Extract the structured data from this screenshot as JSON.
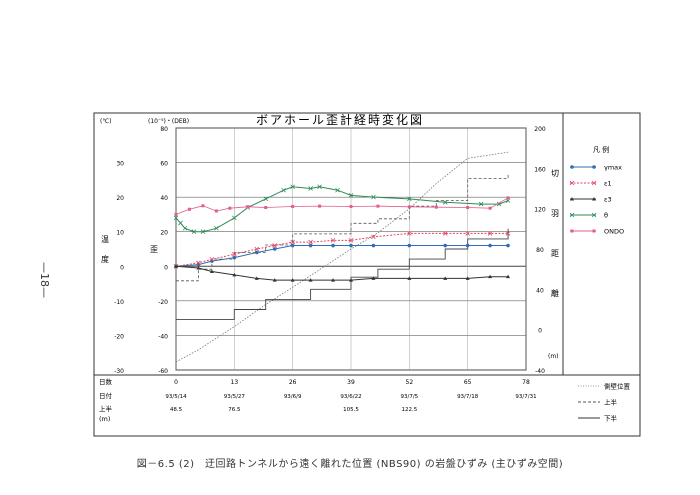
{
  "page_number": "—18—",
  "caption": "図－6.5 (2)　迂回路トンネルから遠く離れた位置 (NBS90) の岩盤ひずみ (主ひずみ空間)",
  "chart_data": {
    "type": "line",
    "title": "ボアホール歪計経時変化図",
    "left_axis": {
      "unit": "(℃)",
      "label_chars": [
        "温",
        "度"
      ],
      "ticks": [
        30,
        20,
        10,
        0,
        -10,
        -20,
        -30
      ]
    },
    "strain_axis": {
      "unit": "(10⁻⁵)・(DEB)",
      "label_char": "歪",
      "ticks": [
        80,
        60,
        40,
        20,
        0,
        -20,
        -40,
        -60
      ],
      "ylim": [
        -60,
        80
      ]
    },
    "right_axis": {
      "unit": "(m)",
      "label_chars": [
        "切",
        "羽",
        "距",
        "離"
      ],
      "ticks": [
        200,
        160,
        120,
        80,
        40,
        0,
        -40
      ]
    },
    "x_axis": {
      "row_labels": [
        "日数",
        "日付",
        "上半",
        "(m)"
      ],
      "day_ticks": [
        "0",
        "13",
        "26",
        "39",
        "52",
        "65",
        "78"
      ],
      "day_values": [
        0,
        13,
        26,
        39,
        52,
        65,
        78
      ],
      "date_ticks": [
        "93/5/14",
        "93/5/27",
        "93/6/9",
        "93/6/22",
        "93/7/5",
        "93/7/18",
        "93/7/31"
      ],
      "face_ticks": [
        "48.5",
        "76.5",
        "",
        "105.5",
        "122.5",
        "",
        ""
      ],
      "xlim": [
        0,
        78
      ]
    },
    "legend_title": "凡 例",
    "legend": [
      {
        "label": "γmax",
        "color": "#2f6fb3",
        "marker": "circle"
      },
      {
        "label": "ε1",
        "color": "#e04560",
        "marker": "x"
      },
      {
        "label": "ε3",
        "color": "#333333",
        "marker": "triangle"
      },
      {
        "label": "θ",
        "color": "#2e8b57",
        "marker": "x"
      },
      {
        "label": "ONDO",
        "color": "#e35d8a",
        "marker": "square"
      }
    ],
    "lower_legend": [
      "側壁位置",
      "上半",
      "下半"
    ],
    "series": [
      {
        "name": "γmax",
        "x": [
          0,
          5,
          8,
          13,
          18,
          22,
          26,
          30,
          35,
          39,
          44,
          52,
          60,
          65,
          70,
          74
        ],
        "y": [
          0,
          1,
          3,
          5,
          8,
          10,
          12,
          12,
          12,
          12,
          12,
          12,
          12,
          12,
          12,
          12
        ]
      },
      {
        "name": "ε1",
        "x": [
          0,
          5,
          8,
          13,
          18,
          22,
          26,
          30,
          35,
          39,
          44,
          52,
          60,
          65,
          70,
          74
        ],
        "y": [
          0,
          2,
          4,
          7,
          10,
          12,
          14,
          14,
          15,
          15,
          17,
          19,
          19,
          19,
          19,
          19
        ]
      },
      {
        "name": "ε3",
        "x": [
          0,
          5,
          8,
          13,
          18,
          22,
          26,
          30,
          35,
          39,
          44,
          52,
          60,
          65,
          70,
          74
        ],
        "y": [
          0,
          -1,
          -3,
          -5,
          -7,
          -8,
          -8,
          -8,
          -8,
          -8,
          -7,
          -7,
          -7,
          -7,
          -6,
          -6
        ]
      },
      {
        "name": "θ",
        "x": [
          0,
          1,
          2,
          4,
          6,
          9,
          13,
          16,
          20,
          24,
          26,
          30,
          32,
          36,
          39,
          44,
          52,
          60,
          68,
          72,
          74
        ],
        "y": [
          28,
          25,
          22,
          20,
          20,
          22,
          28,
          34,
          39,
          44,
          46,
          45,
          46,
          44,
          41,
          40,
          39,
          37,
          36,
          36,
          38
        ]
      },
      {
        "name": "ONDO",
        "x": [
          0,
          3,
          6,
          9,
          12,
          16,
          20,
          26,
          32,
          39,
          45,
          52,
          58,
          65,
          70,
          74
        ],
        "y": [
          15,
          16.5,
          17.5,
          16,
          16.8,
          17.2,
          17,
          17.3,
          17.4,
          17.3,
          17.4,
          17.2,
          17.1,
          17.0,
          16.8,
          19.8
        ]
      }
    ],
    "face_lines": {
      "side_wall": {
        "x": [
          0,
          5,
          13,
          20,
          26,
          39,
          45,
          52,
          58,
          65,
          74
        ],
        "y": [
          -32,
          -20,
          3,
          25,
          42,
          80,
          96,
          120,
          145,
          170,
          176
        ]
      },
      "upper_half": {
        "x": [
          0,
          5,
          8,
          13,
          20,
          26,
          39,
          45,
          52,
          58,
          65,
          74
        ],
        "y": [
          48.5,
          60,
          70,
          76.5,
          84,
          95,
          105.5,
          110,
          122.5,
          128,
          150,
          155
        ]
      },
      "lower_half": {
        "x": [
          0,
          10,
          13,
          20,
          30,
          39,
          45,
          52,
          60,
          65,
          74
        ],
        "y": [
          10,
          10,
          20,
          30,
          40,
          52,
          60,
          70,
          80,
          90,
          100
        ]
      }
    }
  }
}
